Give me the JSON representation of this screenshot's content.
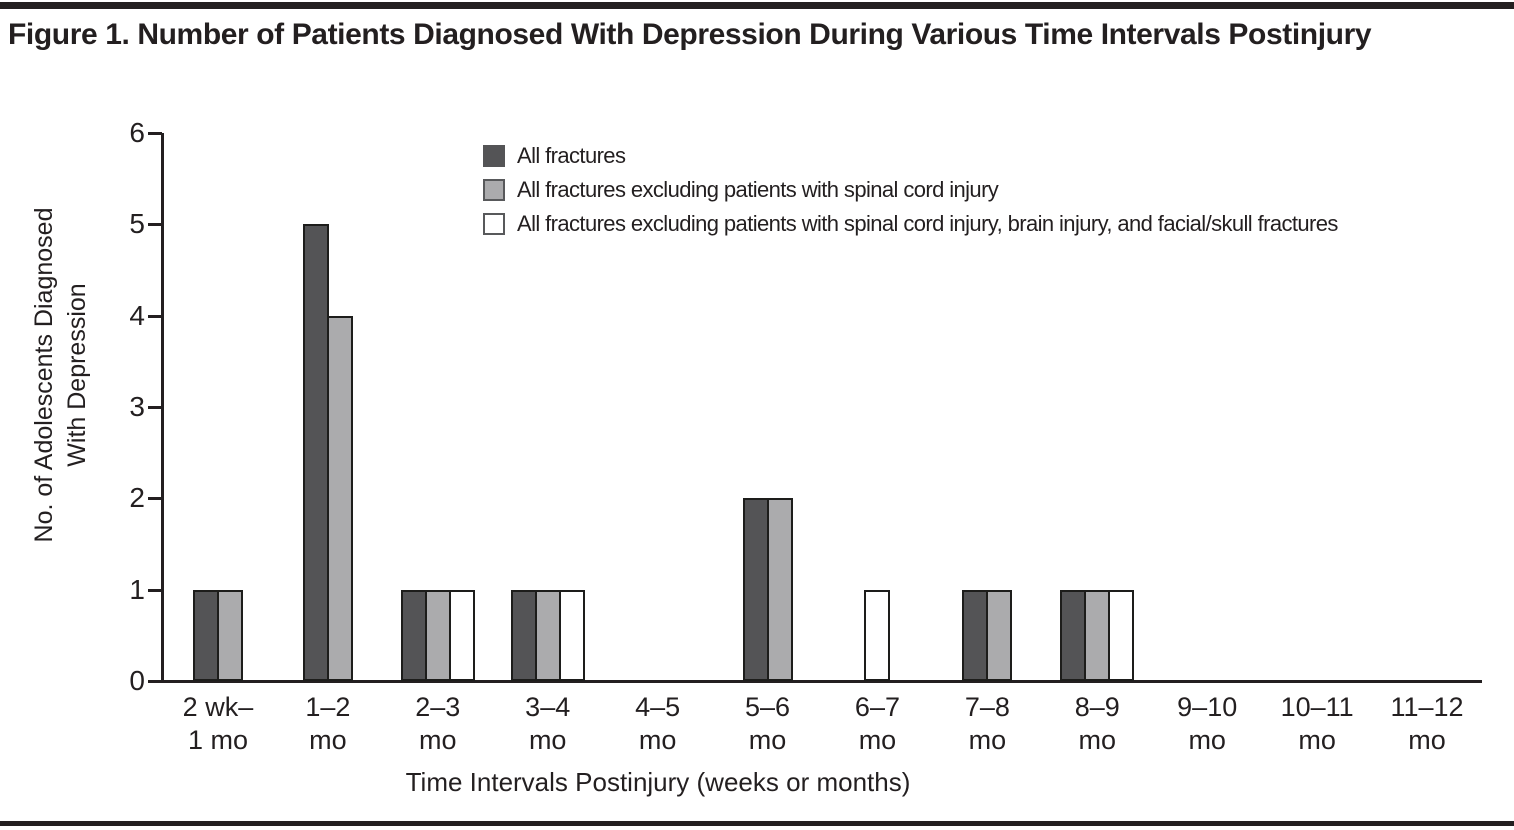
{
  "figure": {
    "top_rule_color": "#231f20",
    "bottom_rule_color": "#231f20"
  },
  "chart_data": {
    "type": "bar",
    "title": "Figure 1. Number of Patients Diagnosed With Depression During Various Time Intervals Postinjury",
    "xlabel": "Time Intervals Postinjury (weeks or months)",
    "ylabel": "No. of Adolescents Diagnosed\nWith Depression",
    "ylim": [
      0,
      6
    ],
    "yticks": [
      0,
      1,
      2,
      3,
      4,
      5,
      6
    ],
    "grid": false,
    "legend_position": "top-center-inside",
    "categories": [
      "2 wk–\n1 mo",
      "1–2\nmo",
      "2–3\nmo",
      "3–4\nmo",
      "4–5\nmo",
      "5–6\nmo",
      "6–7\nmo",
      "7–8\nmo",
      "8–9\nmo",
      "9–10\nmo",
      "10–11\nmo",
      "11–12\nmo"
    ],
    "series": [
      {
        "name": "All fractures",
        "color": "#545456",
        "values": [
          1,
          5,
          1,
          1,
          0,
          2,
          0,
          1,
          1,
          0,
          0,
          0
        ]
      },
      {
        "name": "All fractures excluding patients with spinal cord injury",
        "color": "#ababad",
        "values": [
          1,
          4,
          1,
          1,
          0,
          2,
          0,
          1,
          1,
          0,
          0,
          0
        ]
      },
      {
        "name": "All fractures excluding patients with spinal cord injury, brain injury, and facial/skull fractures",
        "color": "#ffffff",
        "values": [
          0,
          0,
          1,
          1,
          0,
          0,
          1,
          0,
          1,
          0,
          0,
          0
        ]
      }
    ]
  }
}
